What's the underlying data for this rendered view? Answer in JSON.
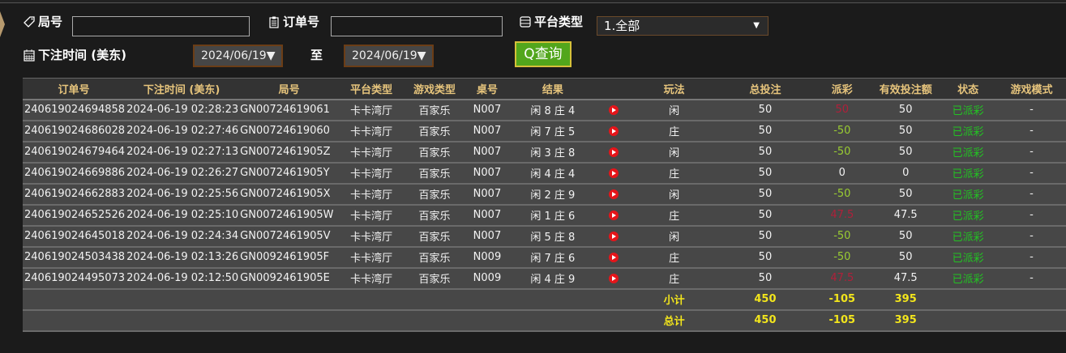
{
  "filters": {
    "round_label": "局号",
    "round_value": "",
    "order_label": "订单号",
    "order_value": "",
    "platform_label": "平台类型",
    "platform_value": "1.全部",
    "time_label": "下注时间 (美东)",
    "date_from": "2024/06/19▼",
    "to_label": "至",
    "date_to": "2024/06/19▼",
    "query_label": "查询"
  },
  "colors": {
    "header_text": "#e6c47c",
    "win": "#b0203a",
    "lose": "#9acd32",
    "status": "#22c322",
    "summary": "#f2e51c"
  },
  "table": {
    "headers": [
      "订单号",
      "下注时间 (美东)",
      "局号",
      "平台类型",
      "游戏类型",
      "桌号",
      "结果",
      "",
      "玩法",
      "总投注",
      "派彩",
      "有效投注额",
      "状态",
      "游戏模式"
    ],
    "rows": [
      {
        "order": "240619024694858",
        "time": "2024-06-19 02:28:23",
        "round": "GN00724619061",
        "platform": "卡卡湾厅",
        "game": "百家乐",
        "table": "N007",
        "result": "闲 8 庄 4",
        "bet_type": "闲",
        "bet": "50",
        "payout": "50",
        "payout_kind": "win",
        "valid": "50",
        "status": "已派彩",
        "mode": "-"
      },
      {
        "order": "240619024686028",
        "time": "2024-06-19 02:27:46",
        "round": "GN00724619060",
        "platform": "卡卡湾厅",
        "game": "百家乐",
        "table": "N007",
        "result": "闲 7 庄 5",
        "bet_type": "庄",
        "bet": "50",
        "payout": "-50",
        "payout_kind": "lose",
        "valid": "50",
        "status": "已派彩",
        "mode": "-"
      },
      {
        "order": "240619024679464",
        "time": "2024-06-19 02:27:13",
        "round": "GN0072461905Z",
        "platform": "卡卡湾厅",
        "game": "百家乐",
        "table": "N007",
        "result": "闲 3 庄 8",
        "bet_type": "闲",
        "bet": "50",
        "payout": "-50",
        "payout_kind": "lose",
        "valid": "50",
        "status": "已派彩",
        "mode": "-"
      },
      {
        "order": "240619024669886",
        "time": "2024-06-19 02:26:27",
        "round": "GN0072461905Y",
        "platform": "卡卡湾厅",
        "game": "百家乐",
        "table": "N007",
        "result": "闲 4 庄 4",
        "bet_type": "庄",
        "bet": "50",
        "payout": "0",
        "payout_kind": "tie",
        "valid": "0",
        "status": "已派彩",
        "mode": "-"
      },
      {
        "order": "240619024662883",
        "time": "2024-06-19 02:25:56",
        "round": "GN0072461905X",
        "platform": "卡卡湾厅",
        "game": "百家乐",
        "table": "N007",
        "result": "闲 2 庄 9",
        "bet_type": "闲",
        "bet": "50",
        "payout": "-50",
        "payout_kind": "lose",
        "valid": "50",
        "status": "已派彩",
        "mode": "-"
      },
      {
        "order": "240619024652526",
        "time": "2024-06-19 02:25:10",
        "round": "GN0072461905W",
        "platform": "卡卡湾厅",
        "game": "百家乐",
        "table": "N007",
        "result": "闲 1 庄 6",
        "bet_type": "庄",
        "bet": "50",
        "payout": "47.5",
        "payout_kind": "win",
        "valid": "47.5",
        "status": "已派彩",
        "mode": "-"
      },
      {
        "order": "240619024645018",
        "time": "2024-06-19 02:24:34",
        "round": "GN0072461905V",
        "platform": "卡卡湾厅",
        "game": "百家乐",
        "table": "N007",
        "result": "闲 5 庄 8",
        "bet_type": "闲",
        "bet": "50",
        "payout": "-50",
        "payout_kind": "lose",
        "valid": "50",
        "status": "已派彩",
        "mode": "-"
      },
      {
        "order": "240619024503438",
        "time": "2024-06-19 02:13:26",
        "round": "GN0092461905F",
        "platform": "卡卡湾厅",
        "game": "百家乐",
        "table": "N009",
        "result": "闲 7 庄 6",
        "bet_type": "庄",
        "bet": "50",
        "payout": "-50",
        "payout_kind": "lose",
        "valid": "50",
        "status": "已派彩",
        "mode": "-"
      },
      {
        "order": "240619024495073",
        "time": "2024-06-19 02:12:50",
        "round": "GN0092461905E",
        "platform": "卡卡湾厅",
        "game": "百家乐",
        "table": "N009",
        "result": "闲 4 庄 9",
        "bet_type": "庄",
        "bet": "50",
        "payout": "47.5",
        "payout_kind": "win",
        "valid": "47.5",
        "status": "已派彩",
        "mode": "-"
      }
    ],
    "subtotal": {
      "label": "小计",
      "bet": "450",
      "payout": "-105",
      "valid": "395"
    },
    "total": {
      "label": "总计",
      "bet": "450",
      "payout": "-105",
      "valid": "395"
    }
  }
}
